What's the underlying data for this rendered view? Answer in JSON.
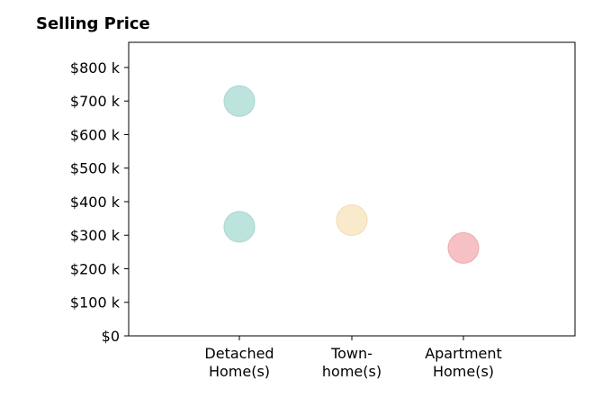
{
  "chart_data": {
    "type": "scatter",
    "title": "Selling Price",
    "xlabel": "",
    "ylabel": "",
    "categories": [
      [
        "Detached",
        "Home(s)"
      ],
      [
        "Town-",
        "home(s)"
      ],
      [
        "Apartment",
        "Home(s)"
      ]
    ],
    "points": [
      {
        "category": 0,
        "value": 700,
        "color": "#bde3df",
        "stroke": "#a6d6d0"
      },
      {
        "category": 0,
        "value": 325,
        "color": "#bde3df",
        "stroke": "#a6d6d0"
      },
      {
        "category": 1,
        "value": 345,
        "color": "#f9eacb",
        "stroke": "#f1ddb5"
      },
      {
        "category": 2,
        "value": 262,
        "color": "#f6c1c5",
        "stroke": "#eeaab0"
      }
    ],
    "ylim": [
      0,
      875
    ],
    "yticks": [
      0,
      100,
      200,
      300,
      400,
      500,
      600,
      700,
      800
    ],
    "ytick_labels": [
      "$0",
      "$100 k",
      "$200 k",
      "$300 k",
      "$400 k",
      "$500 k",
      "$600 k",
      "$700 k",
      "$800 k"
    ],
    "grid": false,
    "legend": "none"
  }
}
